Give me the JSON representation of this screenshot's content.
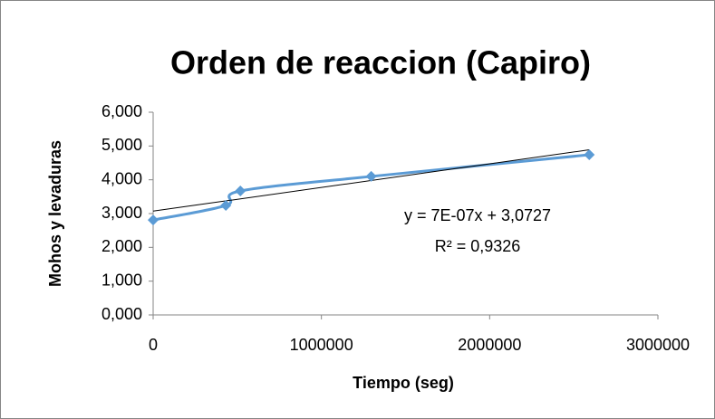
{
  "chart_data": {
    "type": "scatter",
    "title": "Orden de reaccion (Capiro)",
    "x_label": "Tiempo (seg)",
    "y_label": "Mohos y levaduras",
    "series": [
      {
        "color": "#5b9bd5",
        "x": [
          0,
          432000,
          518400,
          1296000,
          2592000
        ],
        "values": [
          2.81,
          3.24,
          3.67,
          4.1,
          4.74
        ]
      }
    ],
    "trendline": {
      "slope": 7e-07,
      "intercept": 3.0727,
      "color": "#000000",
      "equation": "y = 7E-07x + 3,0727",
      "r2": "R² = 0,9326"
    },
    "xlim": [
      0,
      3000000
    ],
    "xticks": [
      0,
      1000000,
      2000000,
      3000000
    ],
    "ylim": [
      0,
      6
    ],
    "yticks": [
      {
        "value": 0,
        "label": "0,000"
      },
      {
        "value": 1,
        "label": "1,000"
      },
      {
        "value": 2,
        "label": "2,000"
      },
      {
        "value": 3,
        "label": "3,000"
      },
      {
        "value": 4,
        "label": "4,000"
      },
      {
        "value": 5,
        "label": "5,000"
      },
      {
        "value": 6,
        "label": "6,000"
      }
    ],
    "grid": false
  }
}
